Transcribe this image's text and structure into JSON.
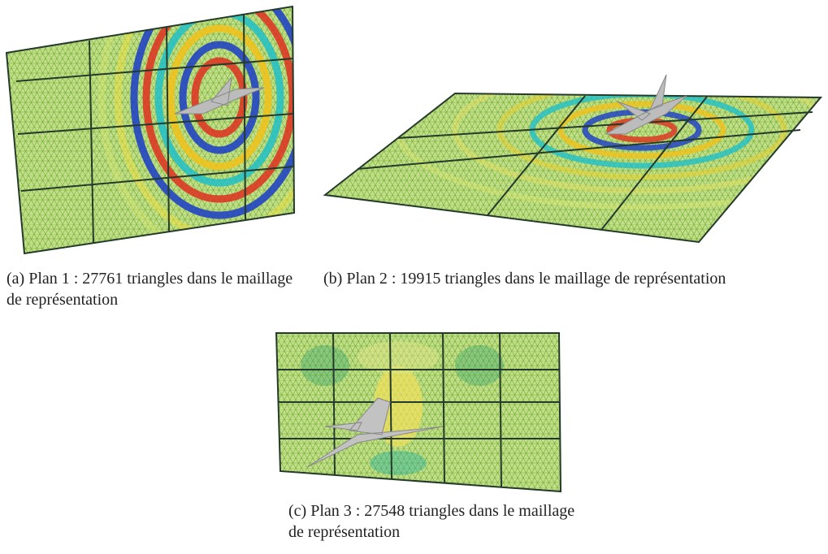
{
  "figures": [
    {
      "caption": "(a) Plan 1 : 27761 triangles dans le maillage de représentation"
    },
    {
      "caption": "(b) Plan 2 : 19915 triangles dans le maillage de représentation"
    },
    {
      "caption": "(c) Plan 3 : 27548 triangles dans le maillage de représentation"
    }
  ]
}
